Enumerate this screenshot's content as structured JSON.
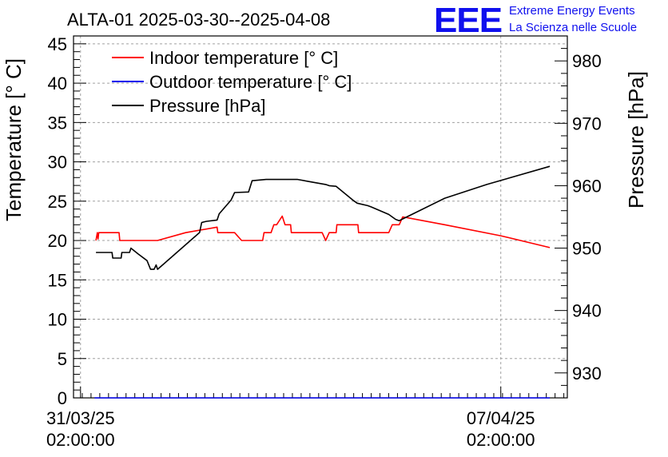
{
  "header": {
    "logo": "EEE",
    "org_line1": "Extreme Energy Events",
    "org_line2": "La Scienza nelle Scuole"
  },
  "chart_data": {
    "type": "line",
    "title": "ALTA-01 2025-03-30--2025-04-08",
    "ylabel": "Temperature [° C]",
    "y2label": "Pressure [hPa]",
    "xlabel": "",
    "ylim": [
      0,
      46
    ],
    "y2lim": [
      926,
      984
    ],
    "xlim": [
      -0.1,
      6.95
    ],
    "x_unit": "days since 31/03/25 02:00:00",
    "x_ticks": [
      {
        "x": 0,
        "label_date": "31/03/25",
        "label_time": "02:00:00"
      },
      {
        "x": 6,
        "label_date": "07/04/25",
        "label_time": "02:00:00"
      }
    ],
    "y_ticks": [
      0,
      5,
      10,
      15,
      20,
      25,
      30,
      35,
      40,
      45
    ],
    "y2_ticks": [
      930,
      940,
      950,
      960,
      970,
      980
    ],
    "grid": true,
    "legend_position": "top-left",
    "series": [
      {
        "name": "Indoor temperature [° C]",
        "axis": "left",
        "color": "#ff0000",
        "x": [
          0.22,
          0.24,
          0.25,
          0.26,
          0.28,
          0.55,
          0.56,
          1.1,
          1.5,
          1.95,
          1.96,
          2.05,
          2.2,
          2.3,
          2.4,
          2.6,
          2.62,
          2.72,
          2.76,
          2.8,
          2.88,
          2.92,
          2.95,
          3.0,
          3.01,
          3.45,
          3.5,
          3.55,
          3.65,
          3.66,
          3.96,
          3.97,
          4.4,
          4.45,
          4.55,
          4.6,
          5.2,
          6.0,
          6.7
        ],
        "y": [
          20.0,
          21.0,
          20.2,
          21.0,
          21.0,
          21.0,
          20.0,
          20.0,
          21.0,
          21.7,
          21.0,
          21.0,
          21.0,
          20.0,
          20.0,
          20.0,
          21.0,
          21.0,
          22.0,
          22.0,
          23.1,
          22.0,
          22.0,
          22.0,
          21.0,
          21.0,
          20.0,
          21.0,
          21.0,
          22.0,
          22.0,
          21.0,
          21.0,
          22.0,
          22.0,
          23.0,
          22.0,
          20.6,
          19.1
        ]
      },
      {
        "name": "Outdoor temperature [° C]",
        "axis": "left",
        "color": "#0000ee",
        "x": [
          0.2,
          6.7
        ],
        "y": [
          0.0,
          0.0
        ]
      },
      {
        "name": "Pressure [hPa]",
        "axis": "right",
        "color": "#000000",
        "x": [
          0.22,
          0.45,
          0.46,
          0.58,
          0.59,
          0.7,
          0.72,
          0.82,
          0.95,
          1.0,
          1.05,
          1.08,
          1.1,
          1.7,
          1.73,
          1.8,
          1.95,
          1.98,
          2.15,
          2.2,
          2.4,
          2.45,
          2.65,
          3.1,
          3.3,
          3.5,
          3.55,
          3.65,
          3.9,
          3.95,
          4.1,
          4.15,
          4.4,
          4.5,
          4.55,
          5.2,
          5.8,
          6.7
        ],
        "y": [
          949.3,
          949.3,
          948.4,
          948.4,
          949.3,
          949.3,
          950.0,
          949.1,
          948.0,
          946.6,
          946.6,
          947.3,
          946.6,
          952.5,
          954.1,
          954.3,
          954.5,
          955.5,
          957.7,
          958.9,
          959.0,
          960.8,
          961.0,
          961.0,
          960.6,
          960.2,
          960.0,
          959.9,
          957.6,
          957.2,
          956.8,
          956.6,
          955.4,
          954.6,
          954.4,
          958.0,
          960.2,
          963.1
        ]
      }
    ]
  }
}
